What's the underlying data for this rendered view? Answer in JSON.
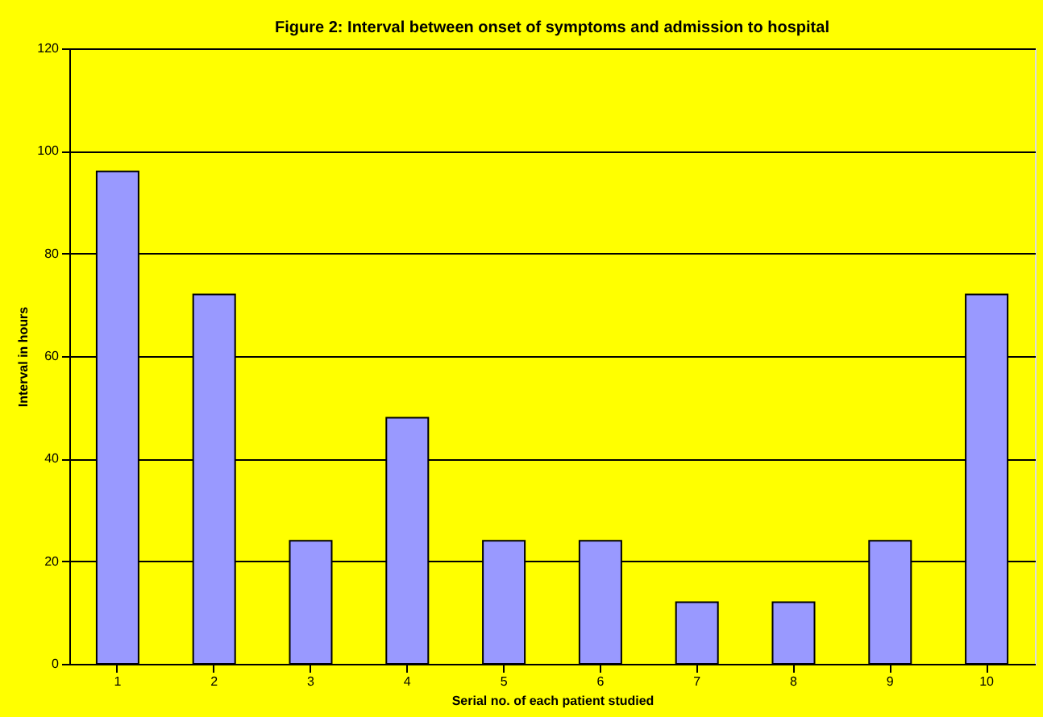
{
  "chart_data": {
    "type": "bar",
    "title": "Figure 2: Interval between onset of symptoms and admission to hospital",
    "xlabel": "Serial no. of each patient studied",
    "ylabel": "Interval in hours",
    "categories": [
      "1",
      "2",
      "3",
      "4",
      "5",
      "6",
      "7",
      "8",
      "9",
      "10"
    ],
    "values": [
      96,
      72,
      24,
      48,
      24,
      24,
      12,
      12,
      24,
      72
    ],
    "color": "#9999ff",
    "ylim": [
      0,
      120
    ],
    "yticks": [
      0,
      20,
      40,
      60,
      80,
      100,
      120
    ],
    "grid": "y"
  }
}
